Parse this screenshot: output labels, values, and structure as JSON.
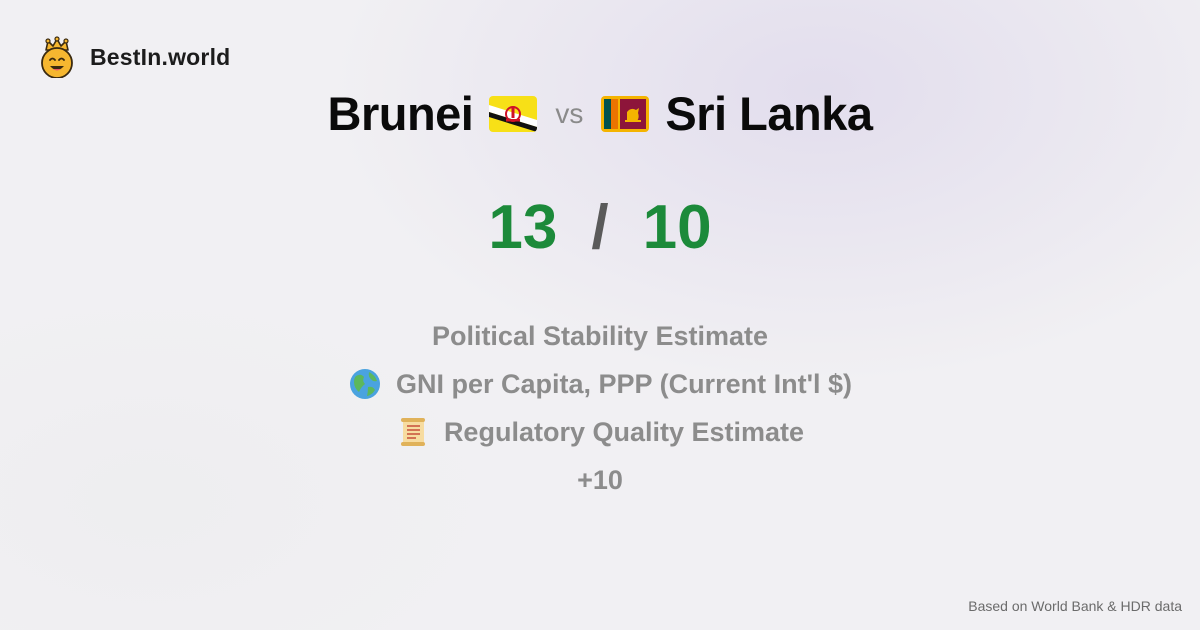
{
  "brand": {
    "name": "BestIn.world",
    "logo_icon": "crowned-smiley-icon"
  },
  "comparison": {
    "left_country": "Brunei",
    "left_flag_icon": "brunei-flag-icon",
    "vs_label": "vs",
    "right_country": "Sri Lanka",
    "right_flag_icon": "sri-lanka-flag-icon"
  },
  "scores": {
    "left": "13",
    "separator": "/",
    "right": "10"
  },
  "metrics": [
    {
      "label": "Political Stability Estimate",
      "icon": ""
    },
    {
      "label": "GNI per Capita, PPP (Current Int'l $)",
      "icon": "globe-icon"
    },
    {
      "label": "Regulatory Quality Estimate",
      "icon": "scroll-icon"
    }
  ],
  "more_label": "+10",
  "footer": "Based on World Bank & HDR data",
  "colors": {
    "score_green": "#1c8a3a",
    "muted_text": "#8c8c8c",
    "background": "#f1f0f3"
  }
}
